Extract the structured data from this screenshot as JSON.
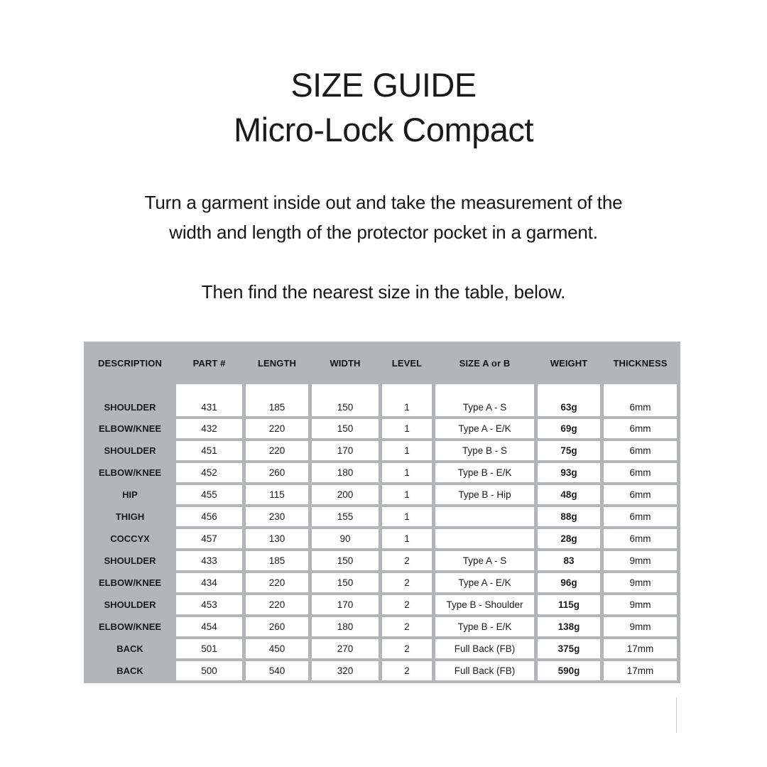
{
  "header": {
    "title_line1": "SIZE GUIDE",
    "title_line2": "Micro-Lock Compact"
  },
  "instructions": {
    "line1": "Turn a garment inside out and take the measurement of the",
    "line2": "width and length of the protector pocket in a garment.",
    "line3": "Then find the nearest size in the table, below."
  },
  "table": {
    "columns": [
      "DESCRIPTION",
      "PART #",
      "LENGTH",
      "WIDTH",
      "LEVEL",
      "SIZE A or B",
      "WEIGHT",
      "THICKNESS"
    ],
    "rows": [
      {
        "description": "SHOULDER",
        "part": "431",
        "length": "185",
        "width": "150",
        "level": "1",
        "size": "Type A - S",
        "weight": "63g",
        "thickness": "6mm"
      },
      {
        "description": "ELBOW/KNEE",
        "part": "432",
        "length": "220",
        "width": "150",
        "level": "1",
        "size": "Type A - E/K",
        "weight": "69g",
        "thickness": "6mm"
      },
      {
        "description": "SHOULDER",
        "part": "451",
        "length": "220",
        "width": "170",
        "level": "1",
        "size": "Type B - S",
        "weight": "75g",
        "thickness": "6mm"
      },
      {
        "description": "ELBOW/KNEE",
        "part": "452",
        "length": "260",
        "width": "180",
        "level": "1",
        "size": "Type B - E/K",
        "weight": "93g",
        "thickness": "6mm"
      },
      {
        "description": "HIP",
        "part": "455",
        "length": "115",
        "width": "200",
        "level": "1",
        "size": "Type B - Hip",
        "weight": "48g",
        "thickness": "6mm"
      },
      {
        "description": "THIGH",
        "part": "456",
        "length": "230",
        "width": "155",
        "level": "1",
        "size": "",
        "weight": "88g",
        "thickness": "6mm"
      },
      {
        "description": "COCCYX",
        "part": "457",
        "length": "130",
        "width": "90",
        "level": "1",
        "size": "",
        "weight": "28g",
        "thickness": "6mm"
      },
      {
        "description": "SHOULDER",
        "part": "433",
        "length": "185",
        "width": "150",
        "level": "2",
        "size": "Type A - S",
        "weight": "83",
        "thickness": "9mm"
      },
      {
        "description": "ELBOW/KNEE",
        "part": "434",
        "length": "220",
        "width": "150",
        "level": "2",
        "size": "Type A - E/K",
        "weight": "96g",
        "thickness": "9mm"
      },
      {
        "description": "SHOULDER",
        "part": "453",
        "length": "220",
        "width": "170",
        "level": "2",
        "size": "Type B - Shoulder",
        "weight": "115g",
        "thickness": "9mm"
      },
      {
        "description": "ELBOW/KNEE",
        "part": "454",
        "length": "260",
        "width": "180",
        "level": "2",
        "size": "Type B - E/K",
        "weight": "138g",
        "thickness": "9mm"
      },
      {
        "description": "BACK",
        "part": "501",
        "length": "450",
        "width": "270",
        "level": "2",
        "size": "Full Back (FB)",
        "weight": "375g",
        "thickness": "17mm"
      },
      {
        "description": "BACK",
        "part": "500",
        "length": "540",
        "width": "320",
        "level": "2",
        "size": "Full Back (FB)",
        "weight": "590g",
        "thickness": "17mm"
      }
    ]
  },
  "colors": {
    "table_bg": "#b4b5b8",
    "cell_bg": "#ffffff",
    "text": "#1c1c1c",
    "artifact": "#c9c9cc"
  }
}
